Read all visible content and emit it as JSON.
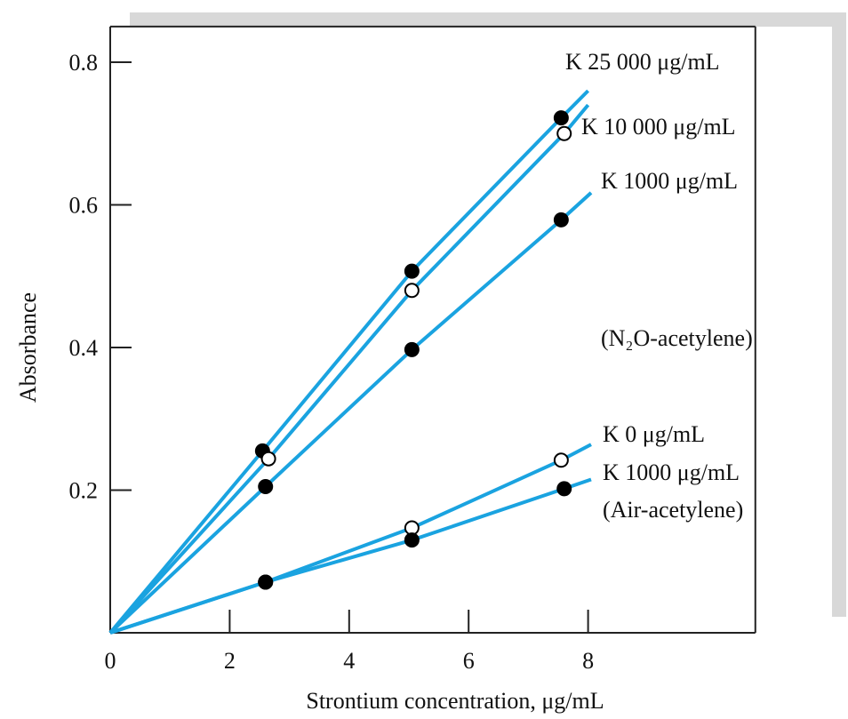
{
  "chart_data": {
    "type": "line",
    "xlabel": "Strontium concentration, μg/mL",
    "ylabel": "Absorbance",
    "xlim": [
      0,
      10.8
    ],
    "ylim": [
      0,
      0.85
    ],
    "x_ticks": [
      0,
      2,
      4,
      6,
      8
    ],
    "x_tick_labels": [
      "0",
      "2",
      "4",
      "6",
      "8"
    ],
    "y_ticks": [
      0.2,
      0.4,
      0.6,
      0.8
    ],
    "y_tick_labels": [
      "0.2",
      "0.4",
      "0.6",
      "0.8"
    ],
    "grid": false,
    "colors": {
      "line": "#1aa3e0",
      "frame": "#222222",
      "shadow": "#d8d8d8"
    },
    "series": [
      {
        "name": "K 25 000 μg/mL",
        "points": [
          [
            0,
            0
          ],
          [
            2.55,
            0.255
          ],
          [
            5.05,
            0.507
          ],
          [
            7.55,
            0.722
          ]
        ],
        "line_end": [
          8.0,
          0.76
        ],
        "marker": "filled"
      },
      {
        "name": "K 10 000 μg/mL",
        "points": [
          [
            0,
            0
          ],
          [
            2.65,
            0.244
          ],
          [
            5.05,
            0.48
          ],
          [
            7.6,
            0.7
          ]
        ],
        "line_end": [
          8.0,
          0.74
        ],
        "marker": "open"
      },
      {
        "name": "K 1000 μg/mL",
        "points": [
          [
            0,
            0
          ],
          [
            2.6,
            0.205
          ],
          [
            5.05,
            0.397
          ],
          [
            7.55,
            0.579
          ]
        ],
        "line_end": [
          8.05,
          0.617
        ],
        "marker": "filled"
      },
      {
        "name": "K 0 μg/mL",
        "points": [
          [
            0,
            0
          ],
          [
            2.6,
            0.071
          ],
          [
            5.05,
            0.147
          ],
          [
            7.55,
            0.242
          ]
        ],
        "line_end": [
          8.05,
          0.264
        ],
        "marker": "open"
      },
      {
        "name": "K 1000 μg/mL",
        "points": [
          [
            0,
            0
          ],
          [
            2.6,
            0.071
          ],
          [
            5.05,
            0.13
          ],
          [
            7.6,
            0.202
          ]
        ],
        "line_end": [
          8.05,
          0.215
        ],
        "marker": "filled"
      }
    ],
    "annotations": {
      "n2o": "(N₂O-acetylene)",
      "air": "(Air-acetylene)"
    }
  }
}
